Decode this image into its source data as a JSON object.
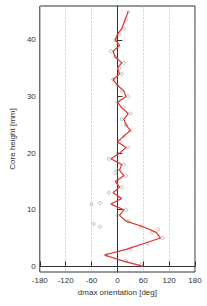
{
  "chart_data": {
    "type": "line",
    "x_label": "dmax orientation [deg]",
    "y_label": "Core height [mm]",
    "xlim": [
      -180,
      180
    ],
    "xticks": [
      -180,
      -120,
      -60,
      0,
      60,
      120,
      180
    ],
    "ylim": [
      -1,
      46
    ],
    "yticks": [
      0,
      10,
      20,
      30,
      40
    ],
    "grid": true,
    "series": [
      {
        "type": "scatter",
        "color": "#999999",
        "marker": "circle",
        "x": [
          55,
          20,
          -25,
          -40,
          -55,
          30,
          70,
          105,
          80,
          95,
          55,
          25,
          0,
          -60,
          20,
          -40,
          5,
          -20,
          10,
          0,
          -5,
          20,
          0,
          15,
          -20,
          0,
          25,
          5,
          15,
          30,
          20,
          10,
          30,
          15,
          0,
          25,
          10,
          0,
          -10,
          10,
          5,
          15,
          -5,
          -15,
          0,
          -5,
          5,
          15,
          20,
          25
        ],
        "y": [
          0.3,
          1,
          2,
          7,
          7.5,
          3,
          4,
          5,
          6,
          6.5,
          7,
          8,
          9,
          11,
          10,
          11.2,
          12,
          13,
          14,
          15,
          16.5,
          16,
          17,
          18,
          19,
          20,
          21,
          22,
          23,
          24,
          25,
          26,
          27,
          28,
          29,
          30,
          31,
          32,
          33,
          34,
          35,
          36,
          37,
          38,
          39,
          40,
          41,
          42,
          43.5,
          45
        ]
      },
      {
        "type": "line",
        "color": "#e0322b",
        "line_style": "solid",
        "x": [
          60,
          10,
          -30,
          20,
          60,
          100,
          90,
          60,
          20,
          5,
          15,
          -15,
          10,
          -10,
          5,
          -5,
          15,
          5,
          10,
          -15,
          5,
          20,
          0,
          15,
          30,
          20,
          15,
          25,
          10,
          0,
          20,
          15,
          0,
          -10,
          5,
          0,
          10,
          -5,
          -10,
          5,
          -5,
          0,
          10,
          15,
          20,
          25
        ],
        "y": [
          0,
          1,
          2,
          3,
          4,
          5,
          6,
          7,
          8,
          9,
          10,
          11,
          12,
          13,
          14,
          15,
          16,
          17,
          18,
          19,
          20,
          21,
          22,
          23,
          24,
          25,
          26,
          27,
          28,
          29,
          30,
          31,
          32,
          33,
          34,
          35,
          36,
          37,
          38,
          39,
          40,
          41,
          42,
          43,
          44,
          45
        ]
      }
    ]
  }
}
